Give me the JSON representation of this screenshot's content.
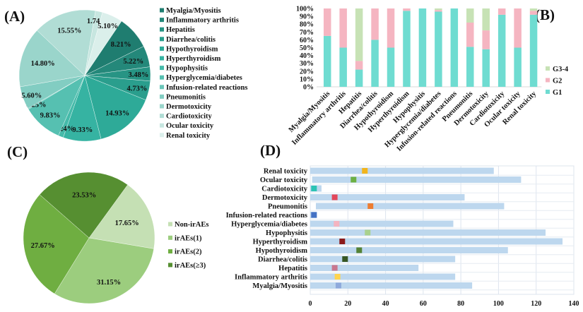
{
  "chart_data": [
    {
      "panel": "(A)",
      "type": "pie",
      "categories": [
        "Myalgia/Myositis",
        "Inflammatory arthritis",
        "Hepatitis",
        "Diarrhea/colitis",
        "Hypothyroidism",
        "Hyperthyroidism",
        "Hypophysitis",
        "Hyperglycemia/diabetes",
        "Infusion-related reactions",
        "Pneumonitis",
        "Dermotoxicity",
        "Cardiotoxicity",
        "Ocular toxicity",
        "Renal toxicity"
      ],
      "values": [
        8.21,
        5.22,
        3.48,
        4.73,
        14.93,
        9.33,
        1.24,
        9.83,
        0.25,
        5.6,
        14.8,
        15.55,
        1.74,
        5.1
      ],
      "labels": [
        "8.21%",
        "5.22%",
        "3.48%",
        "4.73%",
        "14.93%",
        "9.33%",
        "1.24%",
        "9.83%",
        "0.25%",
        "5.60%",
        "14.80%",
        "15.55%",
        "1.74%",
        "5.10%"
      ],
      "colors": [
        "#1f7d70",
        "#24887a",
        "#279484",
        "#2a9e8d",
        "#2eaa98",
        "#36b3a2",
        "#45baa9",
        "#56c0b1",
        "#6ac6b9",
        "#82cdc2",
        "#9ad5cb",
        "#b1ddd5",
        "#c7e6e0",
        "#dbefeb"
      ],
      "legend": "right"
    },
    {
      "panel": "(B)",
      "type": "bar",
      "stacked": true,
      "categories": [
        "Myalgia/Myositis",
        "Inflammatory arthritis",
        "Hepatitis",
        "Diarrhea/colitis",
        "Hypothyroidism",
        "Hyperthyroidism",
        "Hypophysitis",
        "Hyperglycemia/diabetes",
        "Infusion-related reactions",
        "Pneumonitis",
        "Dermotoxicity",
        "Cardiotoxicity",
        "Ocular toxicity",
        "Renal toxicity"
      ],
      "series": [
        {
          "name": "G1",
          "color": "#6fdcd1",
          "values": [
            65,
            50,
            22,
            60,
            50,
            97,
            100,
            96,
            100,
            51,
            48,
            92,
            50,
            92
          ]
        },
        {
          "name": "G2",
          "color": "#f5b5c1",
          "values": [
            35,
            50,
            11,
            40,
            50,
            3,
            0,
            2,
            0,
            31,
            24,
            8,
            50,
            5
          ]
        },
        {
          "name": "G3-4",
          "color": "#c7e2b5",
          "values": [
            0,
            0,
            67,
            0,
            0,
            0,
            0,
            2,
            0,
            18,
            28,
            0,
            0,
            3
          ]
        }
      ],
      "yticks": [
        "0%",
        "10%",
        "20%",
        "30%",
        "40%",
        "50%",
        "60%",
        "70%",
        "80%",
        "90%",
        "100%"
      ],
      "ylim": [
        0,
        100
      ],
      "legend": "right"
    },
    {
      "panel": "(C)",
      "type": "pie",
      "categories": [
        "Non-irAEs",
        "irAEs(1)",
        "irAEs(2)",
        "irAEs(≥3)"
      ],
      "values": [
        17.65,
        31.15,
        27.67,
        23.53
      ],
      "labels": [
        "17.65%",
        "31.15%",
        "27.67%",
        "23.53%"
      ],
      "colors": [
        "#c5e0b4",
        "#9ccd7e",
        "#6fae41",
        "#568f31"
      ],
      "legend": "right"
    },
    {
      "panel": "(D)",
      "type": "bar",
      "orientation": "horizontal",
      "categories": [
        "Renal toxicity",
        "Ocular toxicity",
        "Cardiotoxicity",
        "Dermotoxicity",
        "Pneumonitis",
        "Infusion-related reactions",
        "Hyperglycemia/diabetes",
        "Hypophysitis",
        "Hyperthyroidism",
        "Hypothyroidism",
        "Diarrhea/colitis",
        "Hepatitis",
        "Inflammatory arthritis",
        "Myalgia/Myositis"
      ],
      "range_start": [
        0,
        1,
        0,
        0,
        3,
        0,
        0,
        0,
        0,
        0,
        0,
        0,
        0,
        0
      ],
      "range_end": [
        97.5,
        112,
        6,
        82,
        103,
        3.5,
        76,
        125,
        134,
        105,
        77,
        57.5,
        77,
        86
      ],
      "marker": [
        29,
        23,
        2,
        13,
        32,
        2,
        14,
        30.5,
        17,
        26,
        18.5,
        13,
        14.5,
        15
      ],
      "marker_colors": [
        "#f2b41c",
        "#6db043",
        "#2cc3b4",
        "#e2475a",
        "#ed7d31",
        "#4472c4",
        "#f4b4c0",
        "#a9d18e",
        "#8b1a1a",
        "#548235",
        "#375623",
        "#c9778e",
        "#ffd44f",
        "#8faadc"
      ],
      "bar_color": "#bdd7ee",
      "xticks": [
        "0",
        "20",
        "40",
        "60",
        "80",
        "100",
        "120",
        "140"
      ],
      "xlim": [
        0,
        140
      ]
    }
  ]
}
